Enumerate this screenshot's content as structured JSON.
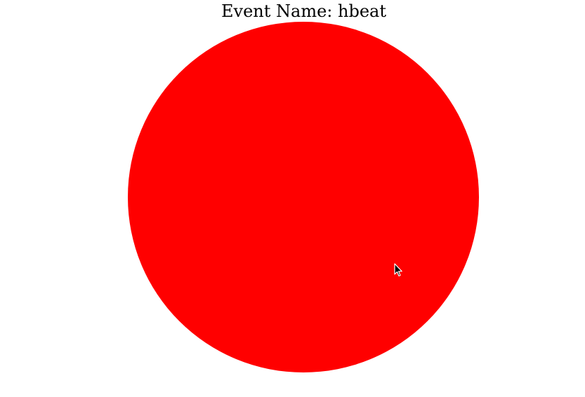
{
  "chart_data": {
    "type": "pie",
    "title": "Event Name: hbeat",
    "slices": [
      {
        "label": "",
        "value": 100,
        "color": "#ff0000"
      }
    ]
  },
  "cursor": {
    "icon": "mouse-pointer-icon"
  }
}
